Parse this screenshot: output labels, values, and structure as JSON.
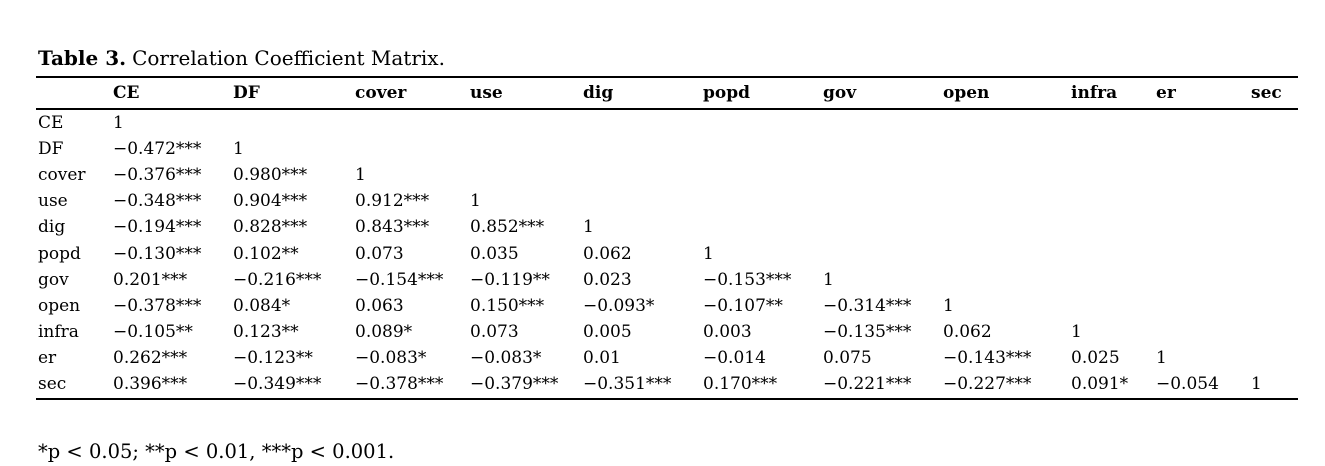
{
  "caption": {
    "label": "Table 3.",
    "text": "Correlation Coefficient Matrix."
  },
  "footnote": "*p < 0.05; **p < 0.01, ***p < 0.001.",
  "colors": {
    "background": "#ffffff",
    "text": "#000000",
    "rule": "#000000"
  },
  "chart_data": {
    "type": "table",
    "title": "Table 3. Correlation Coefficient Matrix.",
    "columns": [
      "",
      "CE",
      "DF",
      "cover",
      "use",
      "dig",
      "popd",
      "gov",
      "open",
      "infra",
      "er",
      "sec"
    ],
    "rows": [
      {
        "label": "CE",
        "values": [
          "1",
          "",
          "",
          "",
          "",
          "",
          "",
          "",
          "",
          "",
          ""
        ]
      },
      {
        "label": "DF",
        "values": [
          "−0.472***",
          "1",
          "",
          "",
          "",
          "",
          "",
          "",
          "",
          "",
          ""
        ]
      },
      {
        "label": "cover",
        "values": [
          "−0.376***",
          "0.980***",
          "1",
          "",
          "",
          "",
          "",
          "",
          "",
          "",
          ""
        ]
      },
      {
        "label": "use",
        "values": [
          "−0.348***",
          "0.904***",
          "0.912***",
          "1",
          "",
          "",
          "",
          "",
          "",
          "",
          ""
        ]
      },
      {
        "label": "dig",
        "values": [
          "−0.194***",
          "0.828***",
          "0.843***",
          "0.852***",
          "1",
          "",
          "",
          "",
          "",
          "",
          ""
        ]
      },
      {
        "label": "popd",
        "values": [
          "−0.130***",
          "0.102**",
          "0.073",
          "0.035",
          "0.062",
          "1",
          "",
          "",
          "",
          "",
          ""
        ]
      },
      {
        "label": "gov",
        "values": [
          "0.201***",
          "−0.216***",
          "−0.154***",
          "−0.119**",
          "0.023",
          "−0.153***",
          "1",
          "",
          "",
          "",
          ""
        ]
      },
      {
        "label": "open",
        "values": [
          "−0.378***",
          "0.084*",
          "0.063",
          "0.150***",
          "−0.093*",
          "−0.107**",
          "−0.314***",
          "1",
          "",
          "",
          ""
        ]
      },
      {
        "label": "infra",
        "values": [
          "−0.105**",
          "0.123**",
          "0.089*",
          "0.073",
          "0.005",
          "0.003",
          "−0.135***",
          "0.062",
          "1",
          "",
          ""
        ]
      },
      {
        "label": "er",
        "values": [
          "0.262***",
          "−0.123**",
          "−0.083*",
          "−0.083*",
          "0.01",
          "−0.014",
          "0.075",
          "−0.143***",
          "0.025",
          "1",
          ""
        ]
      },
      {
        "label": "sec",
        "values": [
          "0.396***",
          "−0.349***",
          "−0.378***",
          "−0.379***",
          "−0.351***",
          "0.170***",
          "−0.221***",
          "−0.227***",
          "0.091*",
          "−0.054",
          "1"
        ]
      }
    ]
  }
}
